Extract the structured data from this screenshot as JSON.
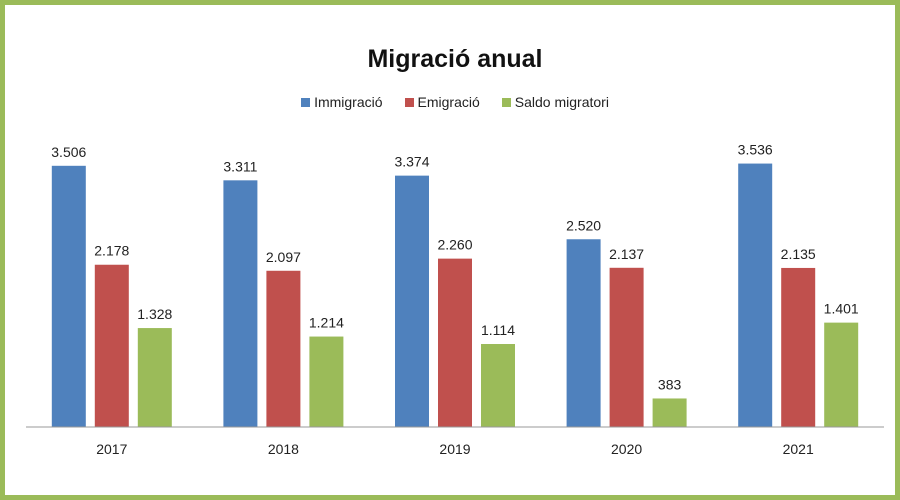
{
  "chart_data": {
    "type": "bar",
    "title": "Migració anual",
    "categories": [
      "2017",
      "2018",
      "2019",
      "2020",
      "2021"
    ],
    "series": [
      {
        "name": "Immigració",
        "color": "#4f81bd",
        "values": [
          3506,
          3311,
          3374,
          2520,
          3536
        ],
        "labels": [
          "3.506",
          "3.311",
          "3.374",
          "2.520",
          "3.536"
        ]
      },
      {
        "name": "Emigració",
        "color": "#c0504d",
        "values": [
          2178,
          2097,
          2260,
          2137,
          2135
        ],
        "labels": [
          "2.178",
          "2.097",
          "2.260",
          "2.137",
          "2.135"
        ]
      },
      {
        "name": "Saldo migratori",
        "color": "#9bbb59",
        "values": [
          1328,
          1214,
          1114,
          383,
          1401
        ],
        "labels": [
          "1.328",
          "1.214",
          "1.114",
          "383",
          "1.401"
        ]
      }
    ],
    "ylim": [
      0,
      4000
    ],
    "grid": false,
    "legend_position": "top",
    "frame_color": "#9bbb59"
  }
}
